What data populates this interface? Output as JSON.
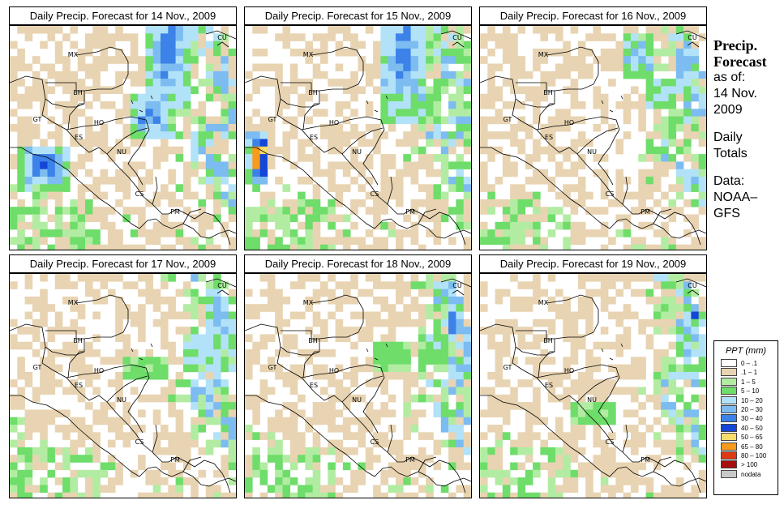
{
  "panels": [
    {
      "title": "Daily Precip. Forecast for  14 Nov., 2009",
      "seed": 1401,
      "wet": 0.55,
      "hot": [
        [
          0.15,
          0.62,
          0.12,
          0.1,
          7
        ],
        [
          0.7,
          0.12,
          0.1,
          0.28,
          6
        ],
        [
          0.62,
          0.4,
          0.1,
          0.1,
          6
        ]
      ]
    },
    {
      "title": "Daily Precip. Forecast for  15 Nov., 2009",
      "seed": 1502,
      "wet": 0.5,
      "hot": [
        [
          0.06,
          0.58,
          0.05,
          0.12,
          11
        ],
        [
          0.7,
          0.13,
          0.11,
          0.3,
          6
        ],
        [
          0.78,
          0.33,
          0.1,
          0.08,
          3
        ]
      ]
    },
    {
      "title": "Daily Precip. Forecast for  16 Nov., 2009",
      "seed": 1603,
      "wet": 0.42,
      "hot": [
        [
          0.9,
          0.22,
          0.05,
          0.08,
          5
        ],
        [
          0.7,
          0.13,
          0.08,
          0.1,
          5
        ],
        [
          0.8,
          0.3,
          0.08,
          0.06,
          4
        ]
      ]
    },
    {
      "title": "Daily Precip. Forecast for  17 Nov., 2009",
      "seed": 1704,
      "wet": 0.4,
      "hot": [
        [
          0.92,
          0.2,
          0.04,
          0.1,
          6
        ],
        [
          0.86,
          0.35,
          0.08,
          0.07,
          4
        ],
        [
          0.6,
          0.42,
          0.09,
          0.06,
          3
        ]
      ]
    },
    {
      "title": "Daily Precip. Forecast for  18 Nov., 2009",
      "seed": 1805,
      "wet": 0.45,
      "hot": [
        [
          0.93,
          0.22,
          0.03,
          0.06,
          8
        ],
        [
          0.85,
          0.33,
          0.07,
          0.08,
          4
        ],
        [
          0.65,
          0.38,
          0.08,
          0.07,
          3
        ]
      ]
    },
    {
      "title": "Daily Precip. Forecast for  19 Nov., 2009",
      "seed": 1906,
      "wet": 0.4,
      "hot": [
        [
          0.96,
          0.18,
          0.02,
          0.04,
          10
        ],
        [
          0.9,
          0.3,
          0.05,
          0.08,
          4
        ],
        [
          0.5,
          0.62,
          0.1,
          0.06,
          3
        ]
      ]
    }
  ],
  "country_labels": [
    "MX",
    "CU",
    "BH",
    "GT",
    "HO",
    "ES",
    "NU",
    "CS",
    "PM"
  ],
  "sidebar": {
    "title_line1": "Precip.",
    "title_line2": "Forecast",
    "as_of": "as of:",
    "date_line1": "14 Nov.",
    "date_line2": "2009",
    "daily": "Daily",
    "totals": "Totals",
    "data": "Data:",
    "source_line1": "NOAA–",
    "source_line2": "GFS"
  },
  "legend": {
    "title": "PPT (mm)",
    "items": [
      {
        "label": "0 – .1",
        "color": "#ffffff"
      },
      {
        "label": ".1 – 1",
        "color": "#e8d4b2"
      },
      {
        "label": "1 – 5",
        "color": "#b2eca2"
      },
      {
        "label": "5 – 10",
        "color": "#6edd6a"
      },
      {
        "label": "10 – 20",
        "color": "#b2e2f8"
      },
      {
        "label": "20 – 30",
        "color": "#7cbcf0"
      },
      {
        "label": "30 – 40",
        "color": "#3c82e8"
      },
      {
        "label": "40 – 50",
        "color": "#1446d8"
      },
      {
        "label": "50 – 65",
        "color": "#f8dc6c"
      },
      {
        "label": "65 – 80",
        "color": "#f89a1c"
      },
      {
        "label": "80 – 100",
        "color": "#e03a14"
      },
      {
        "label": "> 100",
        "color": "#a80e0e"
      },
      {
        "label": "nodata",
        "color": "#c8c8c8"
      }
    ]
  }
}
